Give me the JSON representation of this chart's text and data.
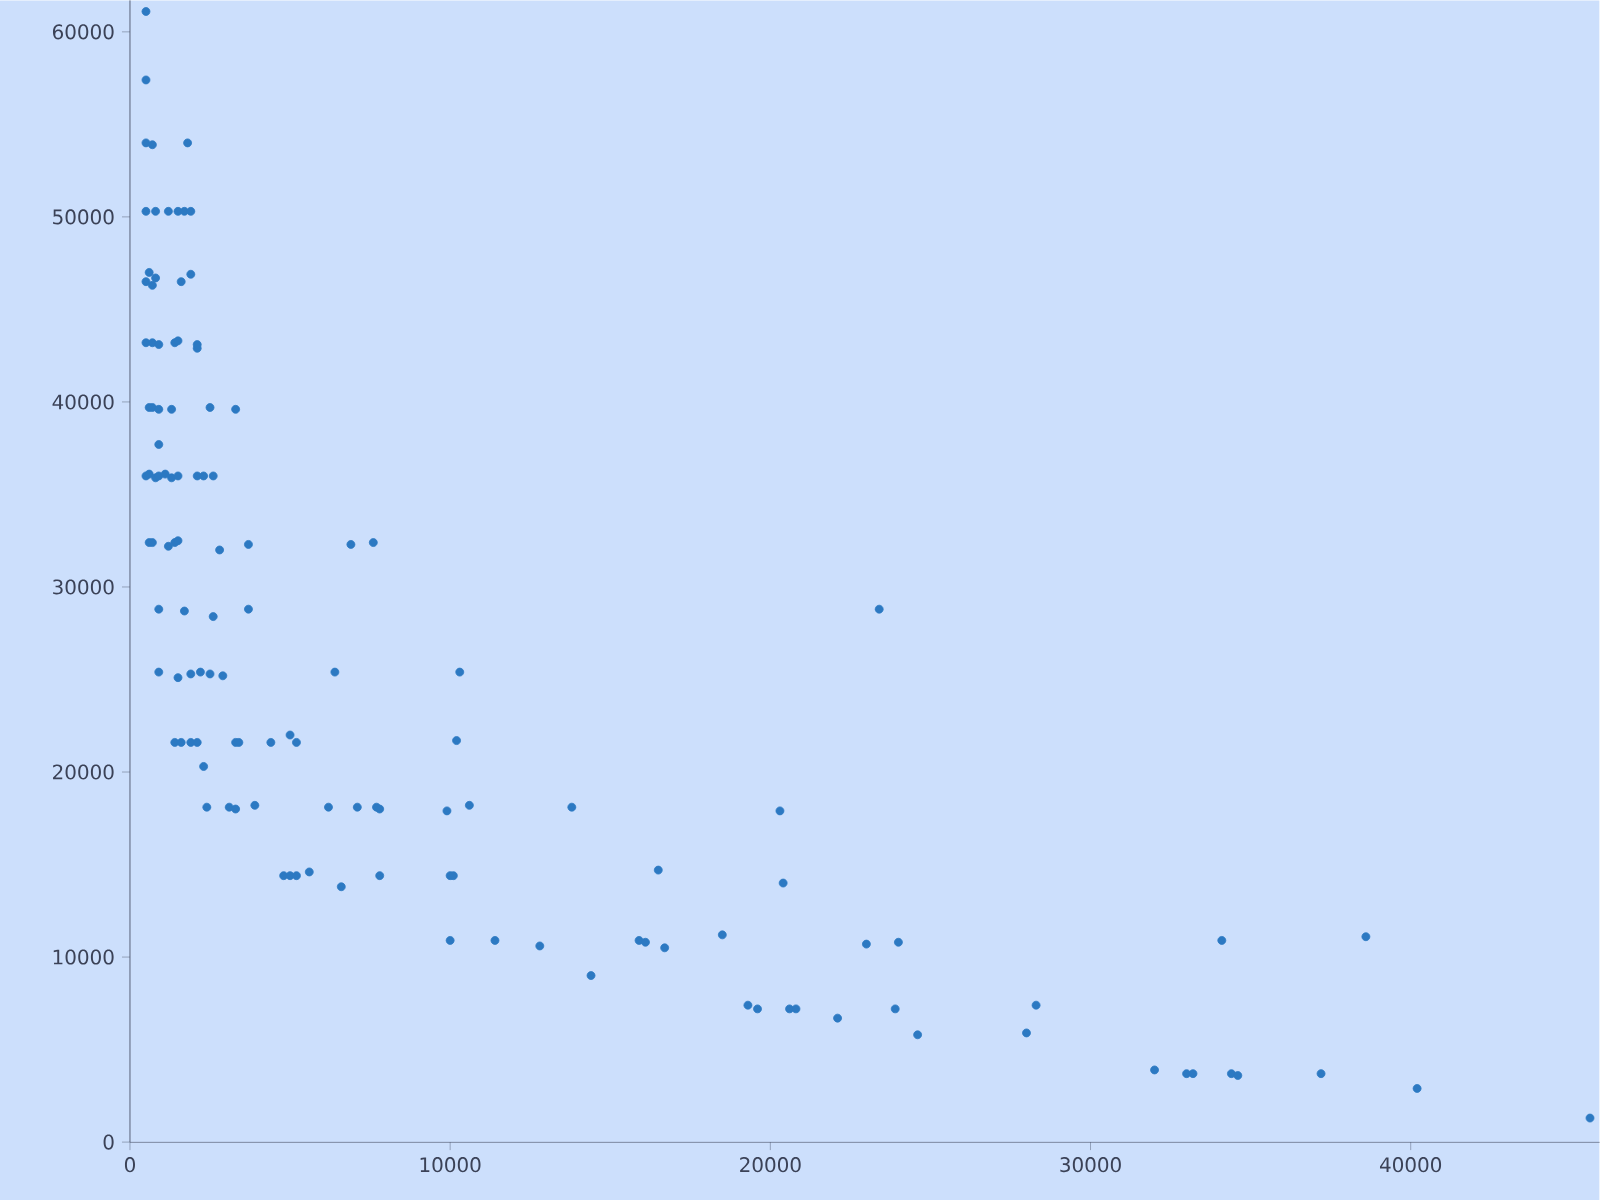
{
  "chart_data": {
    "type": "scatter",
    "color": "#2c79c2",
    "marker": "circle",
    "grid": false,
    "xlim": [
      0,
      45900
    ],
    "ylim": [
      0,
      61700
    ],
    "xticks": [
      0,
      10000,
      20000,
      30000,
      40000
    ],
    "yticks": [
      0,
      10000,
      20000,
      30000,
      40000,
      50000,
      60000
    ],
    "x": [
      500,
      500,
      500,
      700,
      1800,
      500,
      800,
      1200,
      1500,
      1700,
      1900,
      500,
      600,
      700,
      800,
      1600,
      1900,
      500,
      700,
      900,
      1400,
      1500,
      2100,
      2100,
      600,
      700,
      900,
      1300,
      2500,
      3300,
      900,
      500,
      600,
      800,
      900,
      1100,
      1300,
      1500,
      2100,
      2300,
      2600,
      600,
      700,
      1200,
      1400,
      1500,
      2800,
      3700,
      6900,
      7600,
      900,
      1700,
      2600,
      3700,
      900,
      1500,
      1900,
      2200,
      2500,
      2900,
      6400,
      10300,
      1400,
      1600,
      1900,
      2100,
      3300,
      3400,
      4400,
      5000,
      5200,
      10200,
      2300,
      2400,
      3100,
      3300,
      3900,
      6200,
      7100,
      7700,
      7800,
      9900,
      10600,
      13800,
      4800,
      5000,
      5200,
      5600,
      6600,
      7800,
      10000,
      10100,
      16500,
      10000,
      11400,
      12800,
      15900,
      16100,
      16700,
      14400,
      23400,
      20300,
      20400,
      18500,
      23000,
      24000,
      19300,
      19600,
      20600,
      20800,
      22100,
      23900,
      24600,
      28000,
      28300,
      32000,
      33000,
      33200,
      34400,
      34600,
      37200,
      34100,
      38600,
      40200,
      45600
    ],
    "values": [
      61100,
      57400,
      54000,
      53900,
      54000,
      50300,
      50300,
      50300,
      50300,
      50300,
      50300,
      46500,
      47000,
      46300,
      46700,
      46500,
      46900,
      43200,
      43200,
      43100,
      43200,
      43300,
      42900,
      43100,
      39700,
      39700,
      39600,
      39600,
      39700,
      39600,
      37700,
      36000,
      36100,
      35900,
      36000,
      36100,
      35900,
      36000,
      36000,
      36000,
      36000,
      32400,
      32400,
      32200,
      32400,
      32500,
      32000,
      32300,
      32300,
      32400,
      28800,
      28700,
      28400,
      28800,
      25400,
      25100,
      25300,
      25400,
      25300,
      25200,
      25400,
      25400,
      21600,
      21600,
      21600,
      21600,
      21600,
      21600,
      21600,
      22000,
      21600,
      21700,
      20300,
      18100,
      18100,
      18000,
      18200,
      18100,
      18100,
      18100,
      18000,
      17900,
      18200,
      18100,
      14400,
      14400,
      14400,
      14600,
      13800,
      14400,
      14400,
      14400,
      14700,
      10900,
      10900,
      10600,
      10900,
      10800,
      10500,
      9000,
      28800,
      17900,
      14000,
      11200,
      10700,
      10800,
      7400,
      7200,
      7200,
      7200,
      6700,
      7200,
      5800,
      5900,
      7400,
      3900,
      3700,
      3700,
      3700,
      3600,
      3700,
      10900,
      11100,
      2900,
      1300
    ]
  }
}
